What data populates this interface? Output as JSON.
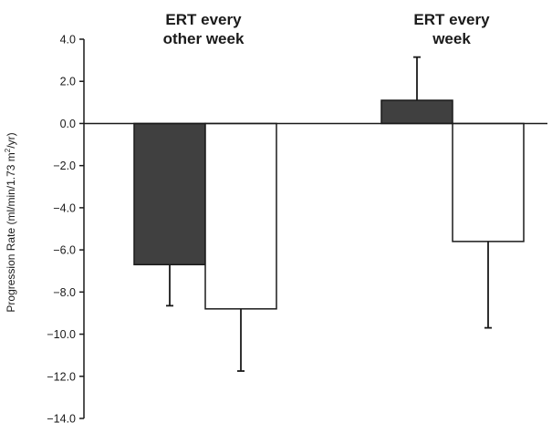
{
  "chart_data": {
    "type": "bar",
    "ylabel_parts": [
      "Progression Rate (ml/min/1.73 m",
      "2",
      "/yr)"
    ],
    "ylim": [
      -14.0,
      4.0
    ],
    "yticks": [
      4.0,
      2.0,
      0.0,
      -2.0,
      -4.0,
      -6.0,
      -8.0,
      -10.0,
      -12.0,
      -14.0
    ],
    "ytick_labels": [
      "4.0",
      "2.0",
      "0.0",
      "−2.0",
      "−4.0",
      "−6.0",
      "−8.0",
      "−10.0",
      "−12.0",
      "−14.0"
    ],
    "grid": false,
    "legend": false,
    "group_labels": [
      [
        "ERT every",
        "other week"
      ],
      [
        "ERT every",
        "week"
      ]
    ],
    "series": [
      {
        "color": "#404040",
        "values": [
          -6.7,
          1.1
        ],
        "error": [
          1.95,
          2.05
        ]
      },
      {
        "color": "#ffffff",
        "values": [
          -8.8,
          -5.6
        ],
        "error": [
          2.95,
          4.1
        ]
      }
    ]
  }
}
